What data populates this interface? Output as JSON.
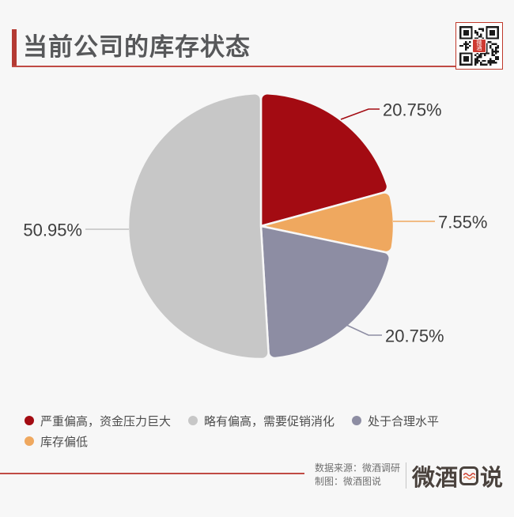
{
  "colors": {
    "background": "#f7f7f7",
    "accent_red": "#b43a33",
    "hairline_red": "#c04b44",
    "title_text": "#57585a",
    "value_label_text": "#3e3e3e",
    "legend_text": "#4d4d4d",
    "footer_text": "#6f6f6f",
    "logo_text": "#4a423d"
  },
  "header": {
    "title": "当前公司的库存状态"
  },
  "qr": {
    "center_label": "微酒"
  },
  "chart_data": {
    "type": "pie",
    "title": "当前公司的库存状态",
    "start_angle_deg": 0,
    "direction": "clockwise",
    "unit": "%",
    "series": [
      {
        "name": "严重偏高，资金压力巨大",
        "value": 20.75,
        "color": "#a30b12"
      },
      {
        "name": "库存偏低",
        "value": 7.55,
        "color": "#efa85f"
      },
      {
        "name": "处于合理水平",
        "value": 20.75,
        "color": "#8d8da3"
      },
      {
        "name": "略有偏高，需要促销消化",
        "value": 50.95,
        "color": "#c7c7c7"
      }
    ],
    "legend_position": "bottom-left",
    "labels_outside": true
  },
  "legend": {
    "items": [
      {
        "label": "严重偏高，资金压力巨大",
        "color": "#a30b12"
      },
      {
        "label": "略有偏高，需要促销消化",
        "color": "#c7c7c7"
      },
      {
        "label": "处于合理水平",
        "color": "#8d8da3"
      },
      {
        "label": "库存偏低",
        "color": "#efa85f"
      }
    ]
  },
  "footer": {
    "source": "数据来源：微酒调研",
    "credit": "制图：微酒图说",
    "logo_prefix": "微酒",
    "logo_suffix": "说",
    "logo_full_text": "微酒图说"
  }
}
